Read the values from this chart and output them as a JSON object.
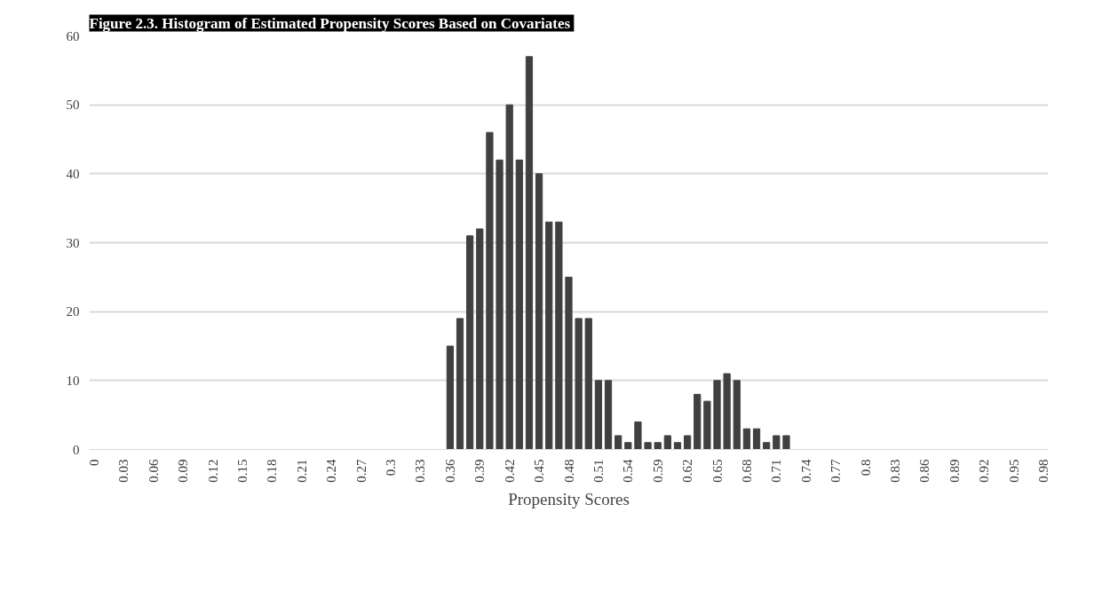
{
  "chart_data": {
    "type": "bar",
    "title": "Figure 2.3. Histogram of Estimated Propensity Scores  Based on Covariates",
    "xlabel": "Propensity Scores",
    "categories": [
      "0",
      null,
      null,
      "0.03",
      null,
      null,
      "0.06",
      null,
      null,
      "0.09",
      null,
      null,
      "0.12",
      null,
      null,
      "0.15",
      null,
      null,
      "0.18",
      null,
      null,
      "0.21",
      null,
      null,
      "0.24",
      null,
      null,
      "0.27",
      null,
      null,
      "0.3",
      null,
      null,
      "0.33",
      null,
      null,
      "0.36",
      null,
      null,
      "0.39",
      null,
      null,
      "0.42",
      null,
      null,
      "0.45",
      null,
      null,
      "0.48",
      null,
      null,
      "0.51",
      null,
      null,
      "0.54",
      null,
      null,
      "0.59",
      null,
      null,
      "0.62",
      null,
      null,
      "0.65",
      null,
      null,
      "0.68",
      null,
      null,
      "0.71",
      null,
      null,
      "0.74",
      null,
      null,
      "0.77",
      null,
      null,
      "0.8",
      null,
      null,
      "0.83",
      null,
      null,
      "0.86",
      null,
      null,
      "0.89",
      null,
      null,
      "0.92",
      null,
      null,
      "0.95",
      null,
      null,
      "0.98"
    ],
    "values": [
      0,
      0,
      0,
      0,
      0,
      0,
      0,
      0,
      0,
      0,
      0,
      0,
      0,
      0,
      0,
      0,
      0,
      0,
      0,
      0,
      0,
      0,
      0,
      0,
      0,
      0,
      0,
      0,
      0,
      0,
      0,
      0,
      0,
      0,
      0,
      0,
      15,
      19,
      31,
      32,
      46,
      42,
      50,
      42,
      57,
      40,
      33,
      33,
      25,
      19,
      19,
      10,
      10,
      2,
      1,
      4,
      1,
      1,
      2,
      1,
      2,
      8,
      7,
      10,
      11,
      10,
      3,
      3,
      1,
      2,
      2,
      0,
      0,
      0,
      0,
      0,
      0,
      0,
      0,
      0,
      0,
      0,
      0,
      0,
      0,
      0,
      0,
      0,
      0,
      0,
      0,
      0,
      0,
      0,
      0,
      0,
      0
    ],
    "color": "#404040",
    "ylim": [
      0,
      60
    ],
    "yticks": [
      0,
      10,
      20,
      30,
      40,
      50,
      60
    ],
    "grid": "y"
  }
}
